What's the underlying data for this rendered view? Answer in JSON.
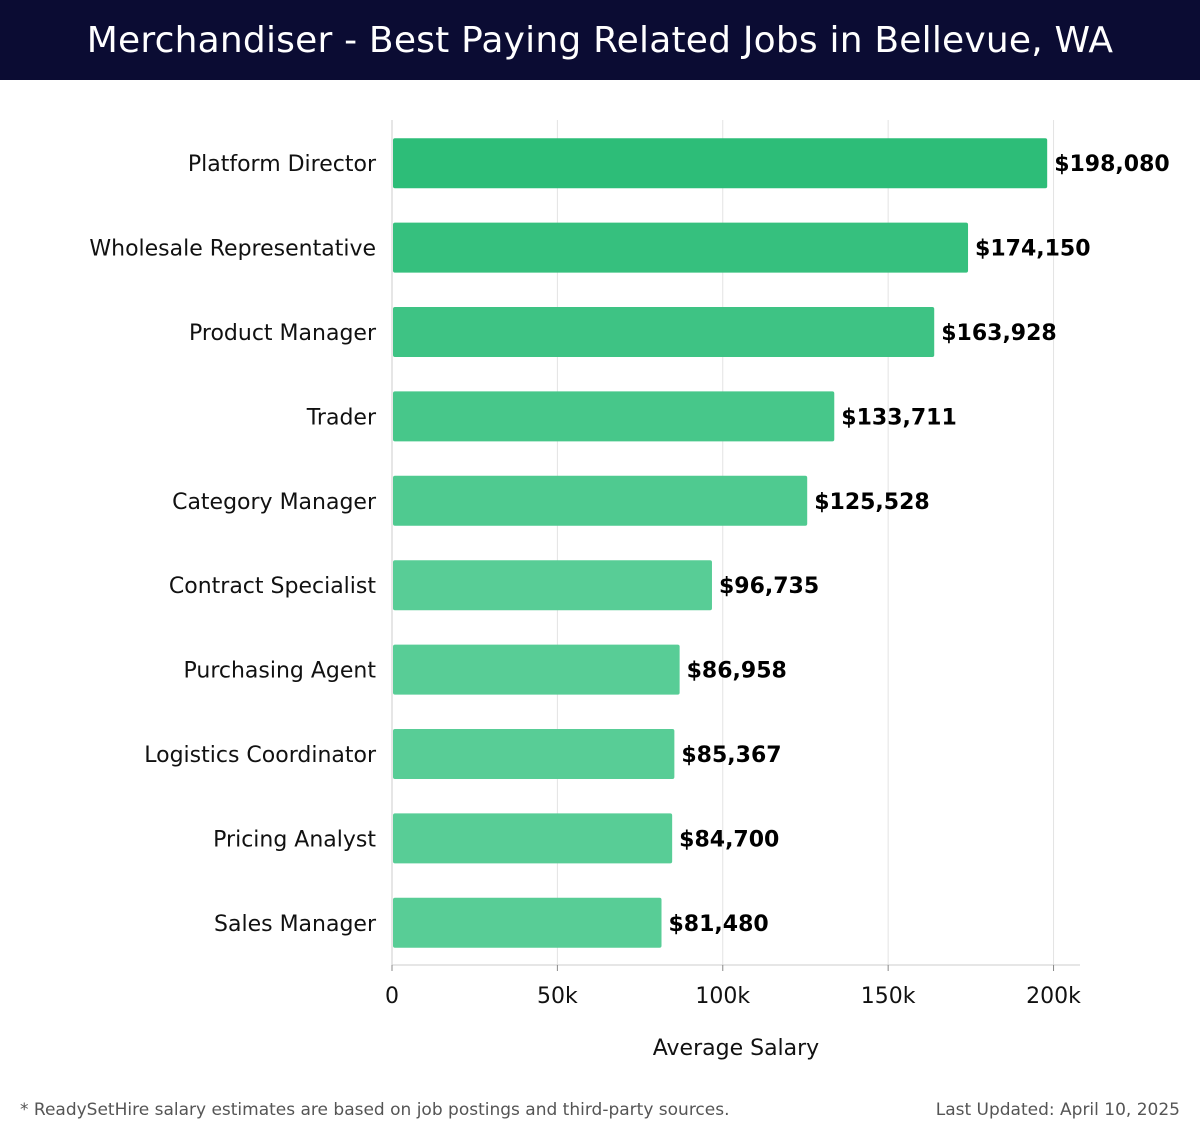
{
  "header": {
    "title": "Merchandiser - Best Paying Related Jobs in Bellevue, WA"
  },
  "chart_data": {
    "type": "bar",
    "orientation": "horizontal",
    "categories": [
      "Platform Director",
      "Wholesale Representative",
      "Product Manager",
      "Trader",
      "Category Manager",
      "Contract Specialist",
      "Purchasing Agent",
      "Logistics Coordinator",
      "Pricing Analyst",
      "Sales Manager"
    ],
    "values": [
      198080,
      174150,
      163928,
      133711,
      125528,
      96735,
      86958,
      85367,
      84700,
      81480
    ],
    "value_labels": [
      "$198,080",
      "$174,150",
      "$163,928",
      "$133,711",
      "$125,528",
      "$96,735",
      "$86,958",
      "$85,367",
      "$84,700",
      "$81,480"
    ],
    "xlabel": "Average Salary",
    "ylabel": "",
    "xlim": [
      0,
      208000
    ],
    "xticks": [
      0,
      50000,
      100000,
      150000,
      200000
    ],
    "xtick_labels": [
      "0",
      "50k",
      "100k",
      "150k",
      "200k"
    ],
    "grid": "vertical",
    "colors": {
      "bar_dark": "#2dbd78",
      "bar_light": "#58cd96",
      "grid": "#e3e3e3",
      "axis": "#cccccc"
    }
  },
  "footer": {
    "note": "* ReadySetHire salary estimates are based on job postings and third-party sources.",
    "updated": "Last Updated: April 10, 2025"
  }
}
